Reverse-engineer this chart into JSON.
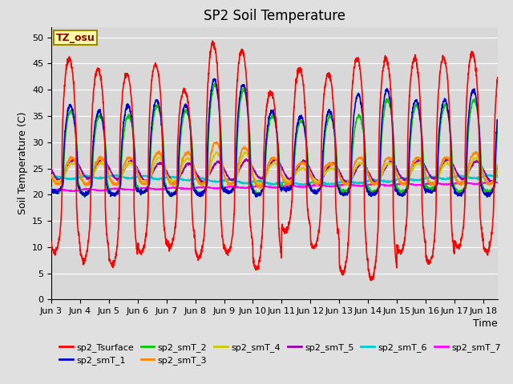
{
  "title": "SP2 Soil Temperature",
  "ylabel": "Soil Temperature (C)",
  "xlabel": "Time",
  "tz_label": "TZ_osu",
  "ylim": [
    0,
    52
  ],
  "yticks": [
    0,
    5,
    10,
    15,
    20,
    25,
    30,
    35,
    40,
    45,
    50
  ],
  "xlim_days": [
    0,
    15.5
  ],
  "x_tick_labels": [
    "Jun 3",
    "Jun 4",
    "Jun 5",
    "Jun 6",
    "Jun 7",
    "Jun 8",
    "Jun 9",
    "Jun 10",
    "Jun 11",
    "Jun 12",
    "Jun 13",
    "Jun 14",
    "Jun 15",
    "Jun 16",
    "Jun 17",
    "Jun 18"
  ],
  "series_colors": {
    "sp2_Tsurface": "#FF0000",
    "sp2_smT_1": "#0000CC",
    "sp2_smT_2": "#00CC00",
    "sp2_smT_3": "#FF8800",
    "sp2_smT_4": "#CCCC00",
    "sp2_smT_5": "#9900AA",
    "sp2_smT_6": "#00CCCC",
    "sp2_smT_7": "#FF00FF"
  },
  "background_color": "#E0E0E0",
  "plot_bg_color": "#D8D8D8",
  "grid_color": "#FFFFFF",
  "title_fontsize": 12,
  "label_fontsize": 9,
  "tick_fontsize": 8,
  "legend_fontsize": 8
}
